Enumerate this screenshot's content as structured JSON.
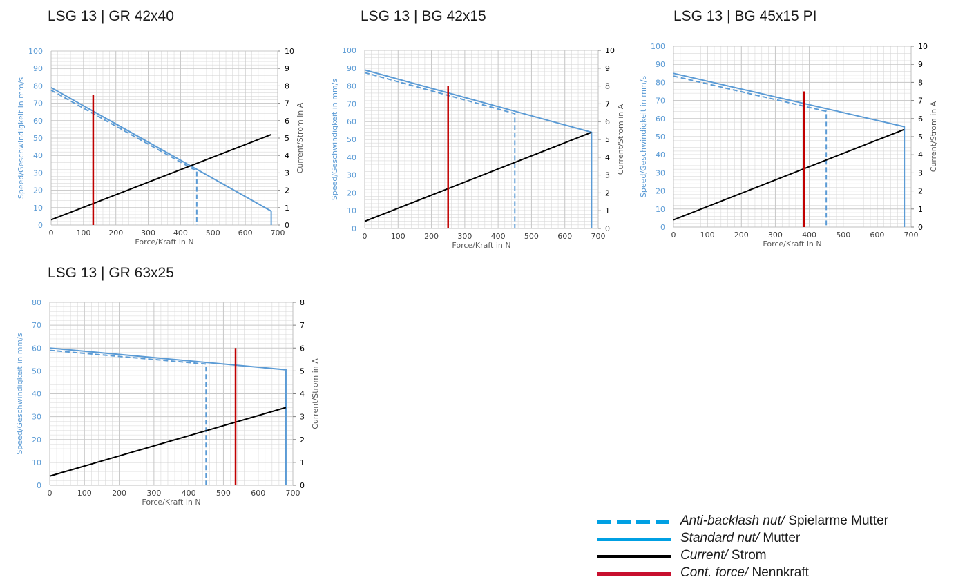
{
  "colors": {
    "speed_axis": "#5b9bd5",
    "standard_nut": "#5b9bd5",
    "anti_backlash": "#5b9bd5",
    "current": "#000000",
    "cont_force": "#c00000",
    "grid": "#d9d9d9",
    "legend_blue": "#00a0e3",
    "legend_black": "#000000",
    "legend_red": "#c8102e"
  },
  "axis_labels": {
    "x": "Force/Kraft in N",
    "y_left": "Speed/Geschwindigkeit in mm/s",
    "y_right": "Current/Strom in A"
  },
  "legend": {
    "items": [
      {
        "style": "dashed",
        "italic": "Anti-backlash nut/",
        "text": " Spielarme Mutter"
      },
      {
        "style": "solid-blue",
        "italic": "Standard nut/",
        "text": " Mutter"
      },
      {
        "style": "solid-black",
        "italic": "Current/",
        "text": " Strom"
      },
      {
        "style": "solid-red",
        "italic": "Cont. force/",
        "text": " Nennkraft"
      }
    ]
  },
  "chart_data": [
    {
      "type": "line",
      "title": "LSG 13 | GR 42x40",
      "xlabel": "Force/Kraft in N",
      "ylabel": "Speed/Geschwindigkeit in mm/s",
      "y2label": "Current/Strom in A",
      "xlim": [
        0,
        700
      ],
      "ylim": [
        0,
        100
      ],
      "y2lim": [
        0,
        10
      ],
      "xticks": [
        0,
        100,
        200,
        300,
        400,
        500,
        600,
        700
      ],
      "yticks": [
        0,
        10,
        20,
        30,
        40,
        50,
        60,
        70,
        80,
        90,
        100
      ],
      "y2ticks": [
        0,
        1,
        2,
        3,
        4,
        5,
        6,
        7,
        8,
        9,
        10
      ],
      "grid": true,
      "series": [
        {
          "name": "Standard nut",
          "axis": "left",
          "style": "solid",
          "x": [
            0,
            680,
            680
          ],
          "y": [
            79,
            8,
            0
          ]
        },
        {
          "name": "Anti-backlash nut",
          "axis": "left",
          "style": "dashed",
          "x": [
            0,
            450,
            450
          ],
          "y": [
            77.5,
            31,
            0
          ]
        },
        {
          "name": "Current",
          "axis": "right",
          "style": "solid",
          "x": [
            0,
            680
          ],
          "y": [
            0.3,
            5.2
          ]
        },
        {
          "name": "Cont. force",
          "axis": "left",
          "style": "solid",
          "x": [
            130,
            130
          ],
          "y": [
            0,
            75
          ]
        }
      ]
    },
    {
      "type": "line",
      "title": "LSG 13 | BG 42x15",
      "xlabel": "Force/Kraft in N",
      "ylabel": "Speed/Geschwindigkeit in mm/s",
      "y2label": "Current/Strom in A",
      "xlim": [
        0,
        700
      ],
      "ylim": [
        0,
        100
      ],
      "y2lim": [
        0,
        10
      ],
      "xticks": [
        0,
        100,
        200,
        300,
        400,
        500,
        600,
        700
      ],
      "yticks": [
        0,
        10,
        20,
        30,
        40,
        50,
        60,
        70,
        80,
        90,
        100
      ],
      "y2ticks": [
        0,
        1,
        2,
        3,
        4,
        5,
        6,
        7,
        8,
        9,
        10
      ],
      "grid": true,
      "series": [
        {
          "name": "Standard nut",
          "axis": "left",
          "style": "solid",
          "x": [
            0,
            680,
            680
          ],
          "y": [
            89,
            54,
            0
          ]
        },
        {
          "name": "Anti-backlash nut",
          "axis": "left",
          "style": "dashed",
          "x": [
            0,
            450,
            450
          ],
          "y": [
            87.5,
            64.5,
            0
          ]
        },
        {
          "name": "Current",
          "axis": "right",
          "style": "solid",
          "x": [
            0,
            680
          ],
          "y": [
            0.4,
            5.4
          ]
        },
        {
          "name": "Cont. force",
          "axis": "left",
          "style": "solid",
          "x": [
            250,
            250
          ],
          "y": [
            0,
            80
          ]
        }
      ]
    },
    {
      "type": "line",
      "title": "LSG 13 | BG 45x15 PI",
      "xlabel": "Force/Kraft in N",
      "ylabel": "Speed/Geschwindigkeit in mm/s",
      "y2label": "Current/Strom in A",
      "xlim": [
        0,
        700
      ],
      "ylim": [
        0,
        100
      ],
      "y2lim": [
        0,
        10
      ],
      "xticks": [
        0,
        100,
        200,
        300,
        400,
        500,
        600,
        700
      ],
      "yticks": [
        0,
        10,
        20,
        30,
        40,
        50,
        60,
        70,
        80,
        90,
        100
      ],
      "y2ticks": [
        0,
        1,
        2,
        3,
        4,
        5,
        6,
        7,
        8,
        9,
        10
      ],
      "grid": true,
      "series": [
        {
          "name": "Standard nut",
          "axis": "left",
          "style": "solid",
          "x": [
            0,
            680,
            680
          ],
          "y": [
            85,
            55.5,
            0
          ]
        },
        {
          "name": "Anti-backlash nut",
          "axis": "left",
          "style": "dashed",
          "x": [
            0,
            450,
            450
          ],
          "y": [
            83.5,
            64,
            0
          ]
        },
        {
          "name": "Current",
          "axis": "right",
          "style": "solid",
          "x": [
            0,
            680
          ],
          "y": [
            0.4,
            5.4
          ]
        },
        {
          "name": "Cont. force",
          "axis": "left",
          "style": "solid",
          "x": [
            385,
            385
          ],
          "y": [
            0,
            75
          ]
        }
      ]
    },
    {
      "type": "line",
      "title": "LSG 13 | GR 63x25",
      "xlabel": "Force/Kraft in N",
      "ylabel": "Speed/Geschwindigkeit in mm/s",
      "y2label": "Current/Strom in A",
      "xlim": [
        0,
        700
      ],
      "ylim": [
        0,
        80
      ],
      "y2lim": [
        0,
        8
      ],
      "xticks": [
        0,
        100,
        200,
        300,
        400,
        500,
        600,
        700
      ],
      "yticks": [
        0,
        10,
        20,
        30,
        40,
        50,
        60,
        70,
        80
      ],
      "y2ticks": [
        0,
        1,
        2,
        3,
        4,
        5,
        6,
        7,
        8
      ],
      "grid": true,
      "series": [
        {
          "name": "Standard nut",
          "axis": "left",
          "style": "solid",
          "x": [
            0,
            680,
            680
          ],
          "y": [
            60,
            50.5,
            0
          ]
        },
        {
          "name": "Anti-backlash nut",
          "axis": "left",
          "style": "dashed",
          "x": [
            0,
            450,
            450
          ],
          "y": [
            59,
            53,
            0
          ]
        },
        {
          "name": "Current",
          "axis": "right",
          "style": "solid",
          "x": [
            0,
            680
          ],
          "y": [
            0.4,
            3.4
          ]
        },
        {
          "name": "Cont. force",
          "axis": "left",
          "style": "solid",
          "x": [
            535,
            535
          ],
          "y": [
            0,
            60
          ]
        }
      ]
    }
  ]
}
